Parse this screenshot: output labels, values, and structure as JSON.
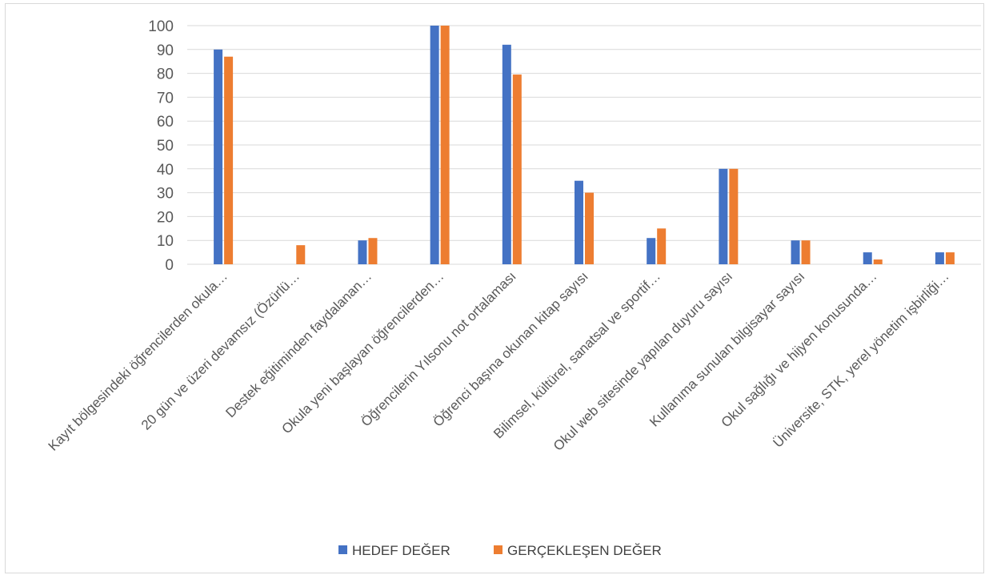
{
  "chart_data": {
    "type": "bar",
    "categories": [
      "Kayıt bölgesindeki öğrencilerden okula…",
      "20 gün ve üzeri devamsız  (Özürlü…",
      "Destek eğitiminden faydalanan…",
      "Okula yeni başlayan öğrencilerden…",
      "Öğrencilerin Yılsonu not ortalaması",
      "Öğrenci başına okunan kitap sayısı",
      "Bilimsel, kültürel, sanatsal ve sportif…",
      "Okul web sitesinde yapılan duyuru sayısı",
      "Kullanıma sunulan bilgisayar sayısı",
      "Okul sağlığı ve hijyen konusunda…",
      "Üniversite, STK, yerel yönetim işbirliği…"
    ],
    "series": [
      {
        "name": "HEDEF DEĞER",
        "color": "#4472c4",
        "values": [
          90,
          0,
          10,
          100,
          92,
          35,
          11,
          40,
          10,
          5,
          5
        ]
      },
      {
        "name": "GERÇEKLEŞEN DEĞER",
        "color": "#ed7d31",
        "values": [
          87,
          8,
          11,
          100,
          79.5,
          30,
          15,
          40,
          10,
          2,
          5
        ]
      }
    ],
    "yticks": [
      "0",
      "10",
      "20",
      "30",
      "40",
      "50",
      "60",
      "70",
      "80",
      "90",
      "100"
    ],
    "ylim": [
      0,
      100
    ],
    "grid": true,
    "legend_position": "bottom"
  }
}
